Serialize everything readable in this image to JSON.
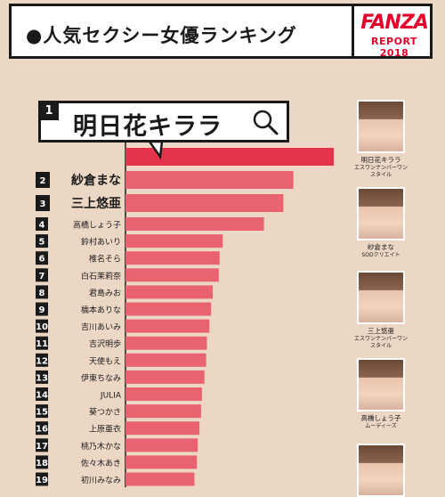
{
  "header": {
    "title": "●人気セクシー女優ランキング",
    "brand_logo": "FANZA",
    "brand_sub": "REPORT 2018"
  },
  "chart_data": {
    "type": "bar",
    "orientation": "horizontal",
    "title": "人気セクシー女優ランキング",
    "categories": [
      "明日花キララ",
      "紗倉まな",
      "三上悠亜",
      "高橋しょう子",
      "鈴村あいり",
      "椎名そら",
      "白石茉莉奈",
      "君島みお",
      "橋本ありな",
      "吉川あいみ",
      "吉沢明歩",
      "天使もえ",
      "伊東ちなみ",
      "JULIA",
      "葵つかさ",
      "上原亜衣",
      "桃乃木かな",
      "佐々木あき",
      "初川みなみ"
    ],
    "ranks": [
      "1",
      "2",
      "3",
      "4",
      "5",
      "6",
      "7",
      "8",
      "9",
      "10",
      "11",
      "12",
      "13",
      "14",
      "15",
      "16",
      "17",
      "18",
      "19"
    ],
    "values": [
      100,
      80.6,
      75.8,
      66.5,
      46.7,
      45.2,
      44.8,
      41.9,
      41.1,
      40.3,
      39.1,
      38.7,
      37.9,
      36.7,
      36.3,
      35.5,
      34.7,
      34.3,
      33.1
    ],
    "grid": false,
    "bar_color": "#e8636f",
    "top_bar_color": "#e4344b"
  },
  "cards": [
    {
      "name": "明日花キララ",
      "agency": "エスワンナンバーワンスタイル"
    },
    {
      "name": "紗倉まな",
      "agency": "SODクリエイト"
    },
    {
      "name": "三上悠亜",
      "agency": "エスワンナンバーワンスタイル"
    },
    {
      "name": "高橋しょう子",
      "agency": "ムーディーズ"
    }
  ],
  "icons": {
    "search": "search-icon"
  }
}
